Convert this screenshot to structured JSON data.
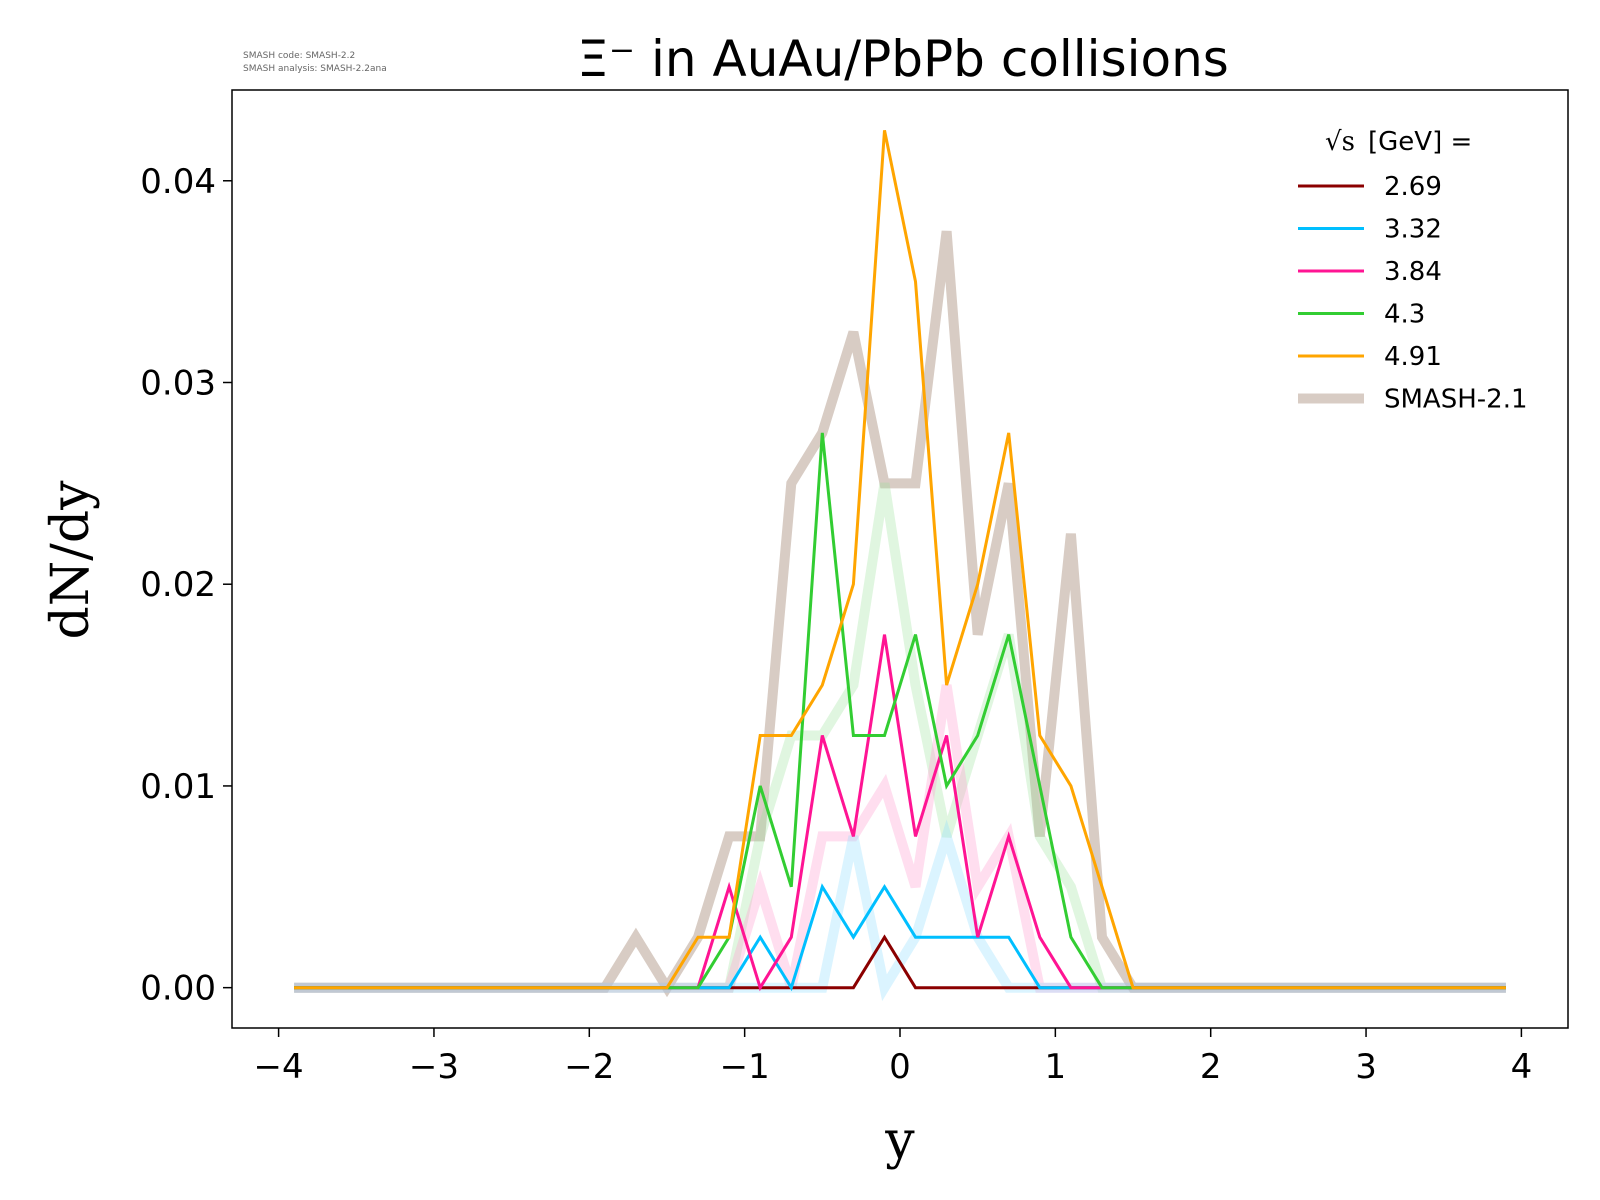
{
  "header": {
    "title": "Ξ⁻ in AuAu/PbPb collisions",
    "code_line": "SMASH code:      SMASH-2.2",
    "analysis_line": "SMASH analysis: SMASH-2.2ana"
  },
  "legend": {
    "title_sqrt": "√s",
    "title_rest": " [GeV] ="
  },
  "chart_data": {
    "type": "line",
    "title": "Ξ⁻ in AuAu/PbPb collisions",
    "xlabel": "y",
    "ylabel": "dN/dy",
    "xlim": [
      -4.3,
      4.3
    ],
    "ylim": [
      -0.002,
      0.0445
    ],
    "xticks": [
      -4,
      -3,
      -2,
      -1,
      0,
      1,
      2,
      3,
      4
    ],
    "xtick_labels": [
      "−4",
      "−3",
      "−2",
      "−1",
      "0",
      "1",
      "2",
      "3",
      "4"
    ],
    "yticks": [
      0.0,
      0.01,
      0.02,
      0.03,
      0.04
    ],
    "ytick_labels": [
      "0.00",
      "0.01",
      "0.02",
      "0.03",
      "0.04"
    ],
    "grid": false,
    "legend_position": "top-right",
    "x": [
      -3.9,
      -3.7,
      -3.5,
      -3.3,
      -3.1,
      -2.9,
      -2.7,
      -2.5,
      -2.3,
      -2.1,
      -1.9,
      -1.7,
      -1.5,
      -1.3,
      -1.1,
      -0.9,
      -0.7,
      -0.5,
      -0.3,
      -0.1,
      0.1,
      0.3,
      0.5,
      0.7,
      0.9,
      1.1,
      1.3,
      1.5,
      1.7,
      1.9,
      2.1,
      2.3,
      2.5,
      2.7,
      2.9,
      3.1,
      3.3,
      3.5,
      3.7,
      3.9
    ],
    "series": [
      {
        "name": "2.69",
        "color": "#8b0000",
        "width": 3,
        "opacity": 1,
        "values": [
          0,
          0,
          0,
          0,
          0,
          0,
          0,
          0,
          0,
          0,
          0,
          0,
          0,
          0,
          0,
          0,
          0,
          0,
          0,
          0.0025,
          0,
          0,
          0,
          0,
          0,
          0,
          0,
          0,
          0,
          0,
          0,
          0,
          0,
          0,
          0,
          0,
          0,
          0,
          0,
          0
        ]
      },
      {
        "name": "3.32",
        "color": "#00bfff",
        "width": 3,
        "opacity": 1,
        "values": [
          0,
          0,
          0,
          0,
          0,
          0,
          0,
          0,
          0,
          0,
          0,
          0,
          0,
          0,
          0,
          0.0025,
          0,
          0.005,
          0.0025,
          0.005,
          0.0025,
          0.0025,
          0.0025,
          0.0025,
          0,
          0,
          0,
          0,
          0,
          0,
          0,
          0,
          0,
          0,
          0,
          0,
          0,
          0,
          0,
          0
        ]
      },
      {
        "name": "3.84",
        "color": "#ff1493",
        "width": 3,
        "opacity": 1,
        "values": [
          0,
          0,
          0,
          0,
          0,
          0,
          0,
          0,
          0,
          0,
          0,
          0,
          0,
          0,
          0.005,
          0,
          0.0025,
          0.0125,
          0.0075,
          0.0175,
          0.0075,
          0.0125,
          0.0025,
          0.0075,
          0.0025,
          0,
          0,
          0,
          0,
          0,
          0,
          0,
          0,
          0,
          0,
          0,
          0,
          0,
          0,
          0
        ]
      },
      {
        "name": "4.3",
        "color": "#32cd32",
        "width": 3,
        "opacity": 1,
        "values": [
          0,
          0,
          0,
          0,
          0,
          0,
          0,
          0,
          0,
          0,
          0,
          0,
          0,
          0,
          0.0025,
          0.01,
          0.005,
          0.0275,
          0.0125,
          0.0125,
          0.0175,
          0.01,
          0.0125,
          0.0175,
          0.01,
          0.0025,
          0,
          0,
          0,
          0,
          0,
          0,
          0,
          0,
          0,
          0,
          0,
          0,
          0,
          0
        ]
      },
      {
        "name": "4.91",
        "color": "#ffa500",
        "width": 3,
        "opacity": 1,
        "values": [
          0,
          0,
          0,
          0,
          0,
          0,
          0,
          0,
          0,
          0,
          0,
          0,
          0,
          0.0025,
          0.0025,
          0.0125,
          0.0125,
          0.015,
          0.02,
          0.0425,
          0.035,
          0.015,
          0.02,
          0.0275,
          0.0125,
          0.01,
          0.005,
          0,
          0,
          0,
          0,
          0,
          0,
          0,
          0,
          0,
          0,
          0,
          0,
          0
        ]
      }
    ],
    "reference_series": [
      {
        "name": "SMASH-2.1",
        "color": "#d8ccc4",
        "width": 10,
        "opacity": 1,
        "values": [
          0,
          0,
          0,
          0,
          0,
          0,
          0,
          0,
          0,
          0,
          0,
          0.0025,
          0,
          0.0025,
          0.0075,
          0.0075,
          0.025,
          0.0275,
          0.0325,
          0.025,
          0.025,
          0.0375,
          0.0175,
          0.025,
          0.0075,
          0.0225,
          0.0025,
          0,
          0,
          0,
          0,
          0,
          0,
          0,
          0,
          0,
          0,
          0,
          0,
          0
        ]
      },
      {
        "name": "",
        "color": "#98e098",
        "width": 10,
        "opacity": 0.3,
        "values": [
          0,
          0,
          0,
          0,
          0,
          0,
          0,
          0,
          0,
          0,
          0,
          0,
          0,
          0,
          0,
          0.0075,
          0.0125,
          0.0125,
          0.015,
          0.025,
          0.015,
          0.0075,
          0.0125,
          0.0175,
          0.0075,
          0.005,
          0,
          0,
          0,
          0,
          0,
          0,
          0,
          0,
          0,
          0,
          0,
          0,
          0,
          0
        ]
      },
      {
        "name": "",
        "color": "#ffa0d0",
        "width": 10,
        "opacity": 0.35,
        "values": [
          0,
          0,
          0,
          0,
          0,
          0,
          0,
          0,
          0,
          0,
          0,
          0,
          0,
          0,
          0,
          0.005,
          0,
          0.0075,
          0.0075,
          0.01,
          0.005,
          0.015,
          0.005,
          0.0075,
          0,
          0,
          0,
          0,
          0,
          0,
          0,
          0,
          0,
          0,
          0,
          0,
          0,
          0,
          0,
          0
        ]
      },
      {
        "name": "",
        "color": "#87dcff",
        "width": 10,
        "opacity": 0.3,
        "values": [
          0,
          0,
          0,
          0,
          0,
          0,
          0,
          0,
          0,
          0,
          0,
          0,
          0,
          0,
          0,
          0,
          0,
          0,
          0.0075,
          0,
          0.0025,
          0.0075,
          0.0025,
          0,
          0,
          0,
          0,
          0,
          0,
          0,
          0,
          0,
          0,
          0,
          0,
          0,
          0,
          0,
          0,
          0
        ]
      }
    ]
  }
}
